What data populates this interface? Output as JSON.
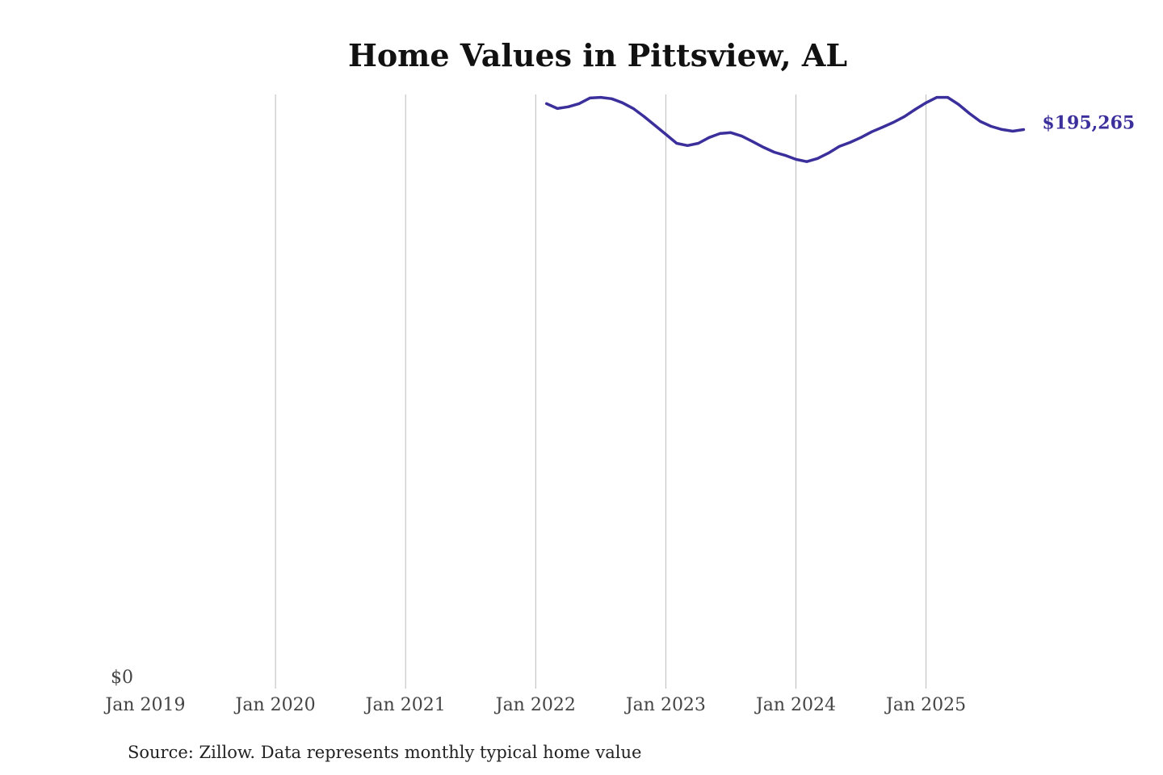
{
  "chart_data": {
    "type": "line",
    "title": "Home Values in Pittsview, AL",
    "source": "Source: Zillow. Data represents monthly typical home value",
    "x_ticks": [
      "Jan 2019",
      "Jan 2020",
      "Jan 2021",
      "Jan 2022",
      "Jan 2023",
      "Jan 2024",
      "Jan 2025"
    ],
    "y_ticks": [
      "$0"
    ],
    "xlim": [
      "2019-01",
      "2025-10"
    ],
    "ylim": [
      0,
      207500
    ],
    "grid": "vertical",
    "line_color": "#3b2f9b",
    "end_label": "$195,265",
    "series": [
      {
        "x": [
          "2022-02",
          "2022-03",
          "2022-04",
          "2022-05",
          "2022-06",
          "2022-07",
          "2022-08",
          "2022-09",
          "2022-10",
          "2022-11",
          "2022-12",
          "2023-01",
          "2023-02",
          "2023-03",
          "2023-04",
          "2023-05",
          "2023-06",
          "2023-07",
          "2023-08",
          "2023-09",
          "2023-10",
          "2023-11",
          "2023-12",
          "2024-01",
          "2024-02",
          "2024-03",
          "2024-04",
          "2024-05",
          "2024-06",
          "2024-07",
          "2024-08",
          "2024-09",
          "2024-10",
          "2024-11",
          "2024-12",
          "2025-01",
          "2025-02",
          "2025-03",
          "2025-04",
          "2025-05",
          "2025-06",
          "2025-07",
          "2025-08",
          "2025-09",
          "2025-10"
        ],
        "values": [
          204300,
          202600,
          203200,
          204300,
          206250,
          206500,
          206000,
          204600,
          202600,
          199800,
          196700,
          193600,
          190500,
          189700,
          190500,
          192500,
          193900,
          194200,
          193000,
          191100,
          189100,
          187400,
          186300,
          184900,
          184100,
          185200,
          187100,
          189400,
          190800,
          192500,
          194500,
          196100,
          197800,
          199800,
          202300,
          204600,
          206500,
          206500,
          204000,
          200900,
          198100,
          196400,
          195300,
          194700,
          195265
        ]
      }
    ]
  }
}
